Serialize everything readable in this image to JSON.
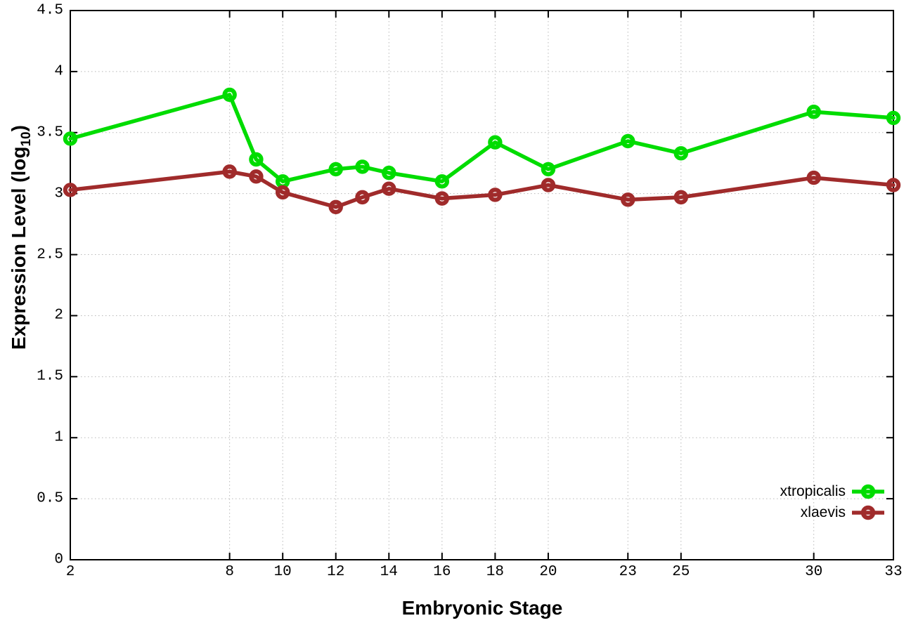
{
  "figure": {
    "background": "#ffffff",
    "axis_color": "#000000",
    "grid_color": "#b8b8b8",
    "xlabel": "Embryonic Stage",
    "ylabel_prefix": "Expression Level (log",
    "ylabel_sub": "10",
    "ylabel_suffix": ")"
  },
  "legend": {
    "entries": [
      {
        "label": "xtropicalis",
        "color": "#00dc00"
      },
      {
        "label": "xlaevis",
        "color": "#a02b2b"
      }
    ]
  },
  "chart_data": {
    "type": "line",
    "title": "",
    "xlabel": "Embryonic Stage",
    "ylabel": "Expression Level (log10)",
    "x": [
      2,
      8,
      9,
      10,
      12,
      13,
      14,
      16,
      18,
      20,
      23,
      25,
      30,
      33
    ],
    "series": [
      {
        "name": "xtropicalis",
        "color": "#00dc00",
        "values": [
          3.45,
          3.81,
          3.28,
          3.1,
          3.2,
          3.22,
          3.17,
          3.1,
          3.42,
          3.2,
          3.43,
          3.33,
          3.67,
          3.62
        ]
      },
      {
        "name": "xlaevis",
        "color": "#a02b2b",
        "values": [
          3.03,
          3.18,
          3.14,
          3.01,
          2.89,
          2.97,
          3.04,
          2.96,
          2.99,
          3.07,
          2.95,
          2.97,
          3.13,
          3.07
        ]
      }
    ],
    "x_ticks": [
      2,
      8,
      10,
      12,
      14,
      16,
      18,
      20,
      23,
      25,
      30,
      33
    ],
    "y_ticks": [
      0,
      0.5,
      1,
      1.5,
      2,
      2.5,
      3,
      3.5,
      4,
      4.5
    ],
    "xlim": [
      2,
      33
    ],
    "ylim": [
      0,
      4.5
    ],
    "grid": true,
    "legend_position": "inside-bottom-right"
  }
}
